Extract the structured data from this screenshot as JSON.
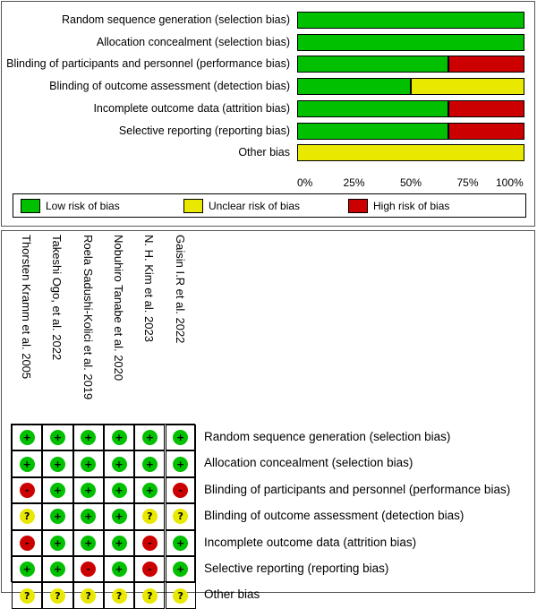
{
  "chart_data": [
    {
      "type": "bar",
      "orientation": "horizontal",
      "stacked": true,
      "title": "",
      "categories": [
        "Random sequence generation (selection bias)",
        "Allocation concealment (selection bias)",
        "Blinding of participants and personnel (performance bias)",
        "Blinding of outcome assessment (detection bias)",
        "Incomplete outcome data (attrition bias)",
        "Selective reporting (reporting bias)",
        "Other bias"
      ],
      "series": [
        {
          "name": "Low risk of bias",
          "color": "#00c000",
          "values": [
            100,
            100,
            66.7,
            50,
            66.7,
            66.7,
            0
          ]
        },
        {
          "name": "Unclear risk of bias",
          "color": "#e8e800",
          "values": [
            0,
            0,
            0,
            50,
            0,
            0,
            100
          ]
        },
        {
          "name": "High risk of bias",
          "color": "#cc0000",
          "values": [
            0,
            0,
            33.3,
            0,
            33.3,
            33.3,
            0
          ]
        }
      ],
      "xlim": [
        0,
        100
      ],
      "xticks": [
        "0%",
        "25%",
        "50%",
        "75%",
        "100%"
      ],
      "legend": [
        "Low risk of bias",
        "Unclear risk of bias",
        "High risk of bias"
      ]
    },
    {
      "type": "table",
      "studies": [
        "Thorsten Kramm et al. 2005",
        "Takeshi Ogo, et al. 2022",
        "Roela Sadushi-Kolici et al. 2019",
        "Nobuhiro Tanabe et al. 2020",
        "N. H. Kim et al. 2023",
        "Gaisin I.R et al. 2022"
      ],
      "domains": [
        "Random sequence generation (selection bias)",
        "Allocation concealment (selection bias)",
        "Blinding of participants and personnel (performance bias)",
        "Blinding of outcome assessment (detection bias)",
        "Incomplete outcome data (attrition bias)",
        "Selective reporting (reporting bias)",
        "Other bias"
      ],
      "judgements": [
        [
          "+",
          "+",
          "+",
          "+",
          "+",
          "+"
        ],
        [
          "+",
          "+",
          "+",
          "+",
          "+",
          "+"
        ],
        [
          "-",
          "+",
          "+",
          "+",
          "+",
          "-"
        ],
        [
          "?",
          "+",
          "+",
          "+",
          "?",
          "?"
        ],
        [
          "-",
          "+",
          "+",
          "+",
          "-",
          "+"
        ],
        [
          "+",
          "+",
          "-",
          "+",
          "-",
          "+"
        ],
        [
          "?",
          "?",
          "?",
          "?",
          "?",
          "?"
        ]
      ],
      "symbol_colors": {
        "+": "#00c000",
        "?": "#e8e800",
        "-": "#cc0000"
      }
    }
  ]
}
